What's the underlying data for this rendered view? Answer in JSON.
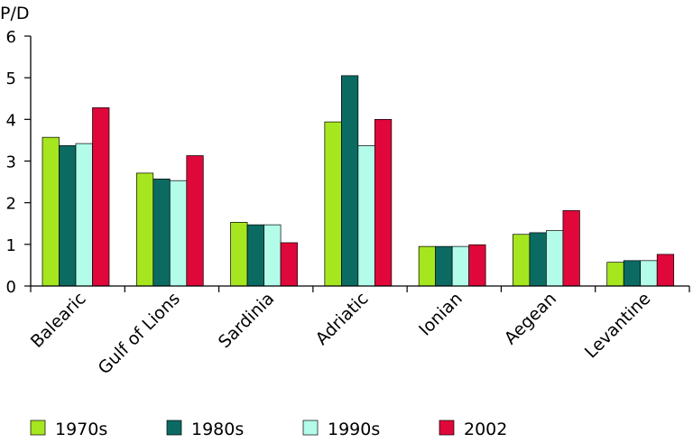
{
  "chart_data": {
    "type": "bar",
    "ylabel": "P/D",
    "ylim": [
      0,
      6
    ],
    "yticks": [
      0,
      1,
      2,
      3,
      4,
      5,
      6
    ],
    "categories": [
      "Balearic",
      "Gulf of Lions",
      "Sardinia",
      "Adriatic",
      "Ionian",
      "Aegean",
      "Levantine"
    ],
    "series": [
      {
        "name": "1970s",
        "color": "#a6e61f",
        "values": [
          3.57,
          2.71,
          1.53,
          3.94,
          0.95,
          1.24,
          0.57
        ]
      },
      {
        "name": "1980s",
        "color": "#0b6b63",
        "values": [
          3.37,
          2.57,
          1.47,
          5.05,
          0.95,
          1.28,
          0.61
        ]
      },
      {
        "name": "1990s",
        "color": "#b3fce9",
        "values": [
          3.42,
          2.53,
          1.47,
          3.37,
          0.95,
          1.33,
          0.61
        ]
      },
      {
        "name": "2002",
        "color": "#e0073a",
        "values": [
          4.28,
          3.13,
          1.04,
          4.0,
          0.99,
          1.81,
          0.76
        ]
      }
    ],
    "grid": false,
    "legend": "bottom"
  }
}
